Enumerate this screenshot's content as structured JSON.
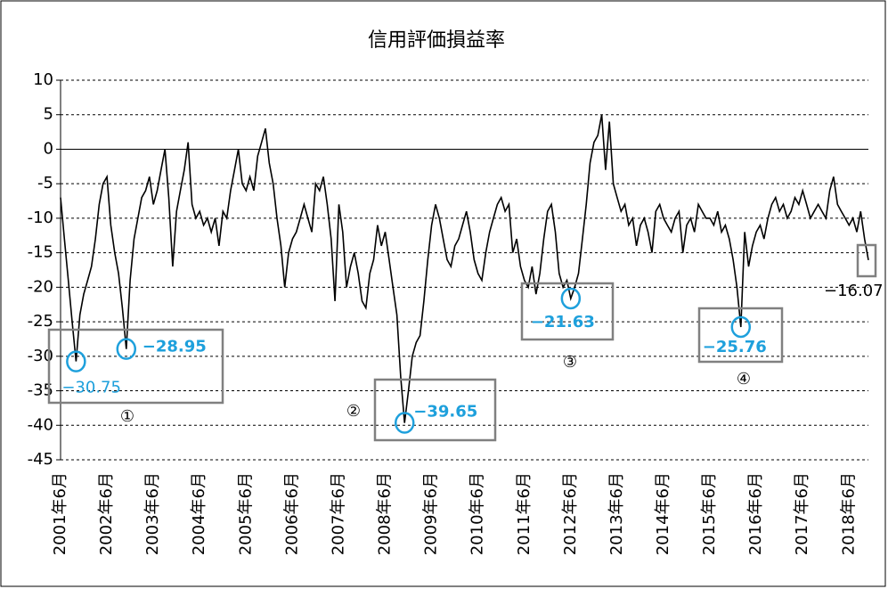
{
  "chart_data": {
    "type": "line",
    "title": "信用評価損益率",
    "categories": [
      "2001年6月",
      null,
      null,
      null,
      null,
      null,
      null,
      null,
      null,
      null,
      null,
      null,
      "2002年6月",
      null,
      null,
      null,
      null,
      null,
      null,
      null,
      null,
      null,
      null,
      null,
      "2003年6月",
      null,
      null,
      null,
      null,
      null,
      null,
      null,
      null,
      null,
      null,
      null,
      "2004年6月",
      null,
      null,
      null,
      null,
      null,
      null,
      null,
      null,
      null,
      null,
      null,
      "2005年6月",
      null,
      null,
      null,
      null,
      null,
      null,
      null,
      null,
      null,
      null,
      null,
      "2006年6月",
      null,
      null,
      null,
      null,
      null,
      null,
      null,
      null,
      null,
      null,
      null,
      "2007年6月",
      null,
      null,
      null,
      null,
      null,
      null,
      null,
      null,
      null,
      null,
      null,
      "2008年6月",
      null,
      null,
      null,
      null,
      null,
      null,
      null,
      null,
      null,
      null,
      null,
      "2009年6月",
      null,
      null,
      null,
      null,
      null,
      null,
      null,
      null,
      null,
      null,
      null,
      "2010年6月",
      null,
      null,
      null,
      null,
      null,
      null,
      null,
      null,
      null,
      null,
      null,
      "2011年6月",
      null,
      null,
      null,
      null,
      null,
      null,
      null,
      null,
      null,
      null,
      null,
      "2012年6月",
      null,
      null,
      null,
      null,
      null,
      null,
      null,
      null,
      null,
      null,
      null,
      "2013年6月",
      null,
      null,
      null,
      null,
      null,
      null,
      null,
      null,
      null,
      null,
      null,
      "2014年6月",
      null,
      null,
      null,
      null,
      null,
      null,
      null,
      null,
      null,
      null,
      null,
      "2015年6月",
      null,
      null,
      null,
      null,
      null,
      null,
      null,
      null,
      null,
      null,
      null,
      "2016年6月",
      null,
      null,
      null,
      null,
      null,
      null,
      null,
      null,
      null,
      null,
      null,
      "2017年6月",
      null,
      null,
      null,
      null,
      null,
      null,
      null,
      null,
      null,
      null,
      null,
      "2018年6月",
      null,
      null,
      null,
      null,
      null
    ],
    "values": [
      -7,
      -13,
      -19,
      -25,
      -30.75,
      -24,
      -21,
      -19,
      -17,
      -13,
      -8,
      -5,
      -4,
      -11,
      -15,
      -18,
      -23,
      -28.95,
      -19,
      -13,
      -10,
      -7,
      -6,
      -4,
      -8,
      -6,
      -3,
      0,
      -7,
      -17,
      -9,
      -6,
      -3,
      1,
      -8,
      -10,
      -9,
      -11,
      -10,
      -12,
      -10,
      -14,
      -9,
      -10,
      -6,
      -3,
      0,
      -5,
      -6,
      -4,
      -6,
      -1,
      1,
      3,
      -2,
      -5,
      -10,
      -14,
      -20,
      -15,
      -13,
      -12,
      -10,
      -8,
      -10,
      -12,
      -5,
      -6,
      -4,
      -8,
      -13,
      -22,
      -8,
      -12,
      -20,
      -17,
      -15,
      -18,
      -22,
      -23,
      -18,
      -16,
      -11,
      -14,
      -12,
      -16,
      -20,
      -24,
      -33,
      -39.65,
      -35,
      -30,
      -28,
      -27,
      -22,
      -16,
      -11,
      -8,
      -10,
      -13,
      -16,
      -17,
      -14,
      -13,
      -11,
      -9,
      -12,
      -16,
      -18,
      -19,
      -15,
      -12,
      -10,
      -8,
      -7,
      -9,
      -8,
      -15,
      -13,
      -17,
      -19,
      -20,
      -17,
      -21,
      -18,
      -13,
      -9,
      -8,
      -12,
      -18,
      -20,
      -19,
      -21.63,
      -20,
      -18,
      -13,
      -8,
      -2,
      1,
      2,
      5,
      -3,
      4,
      -5,
      -7,
      -9,
      -8,
      -11,
      -10,
      -14,
      -11,
      -10,
      -12,
      -15,
      -9,
      -8,
      -10,
      -11,
      -12,
      -10,
      -9,
      -15,
      -11,
      -10,
      -12,
      -8,
      -9,
      -10,
      -10,
      -11,
      -9,
      -12,
      -11,
      -13,
      -16,
      -20,
      -25.76,
      -12,
      -17,
      -14,
      -12,
      -11,
      -13,
      -10,
      -8,
      -7,
      -9,
      -8,
      -10,
      -9,
      -7,
      -8,
      -6,
      -8,
      -10,
      -9,
      -8,
      -9,
      -10,
      -6,
      -4,
      -8,
      -9,
      -10,
      -11,
      -10,
      -12,
      -9,
      -13,
      -16.07
    ],
    "color": "#000000",
    "ylim": [
      -45,
      10
    ],
    "yticks": [
      10,
      5,
      0,
      -5,
      -10,
      -15,
      -20,
      -25,
      -30,
      -35,
      -40,
      -45
    ],
    "grid": true,
    "annotations": [
      {
        "label": "−30.75",
        "value": -30.75,
        "tag": "①"
      },
      {
        "label": "−28.95",
        "value": -28.95
      },
      {
        "label": "−39.65",
        "value": -39.65,
        "tag": "②"
      },
      {
        "label": "−21.63",
        "value": -21.63,
        "tag": "③"
      },
      {
        "label": "−25.76",
        "value": -25.76,
        "tag": "④"
      },
      {
        "label": "−16.07",
        "value": -16.07
      }
    ]
  }
}
